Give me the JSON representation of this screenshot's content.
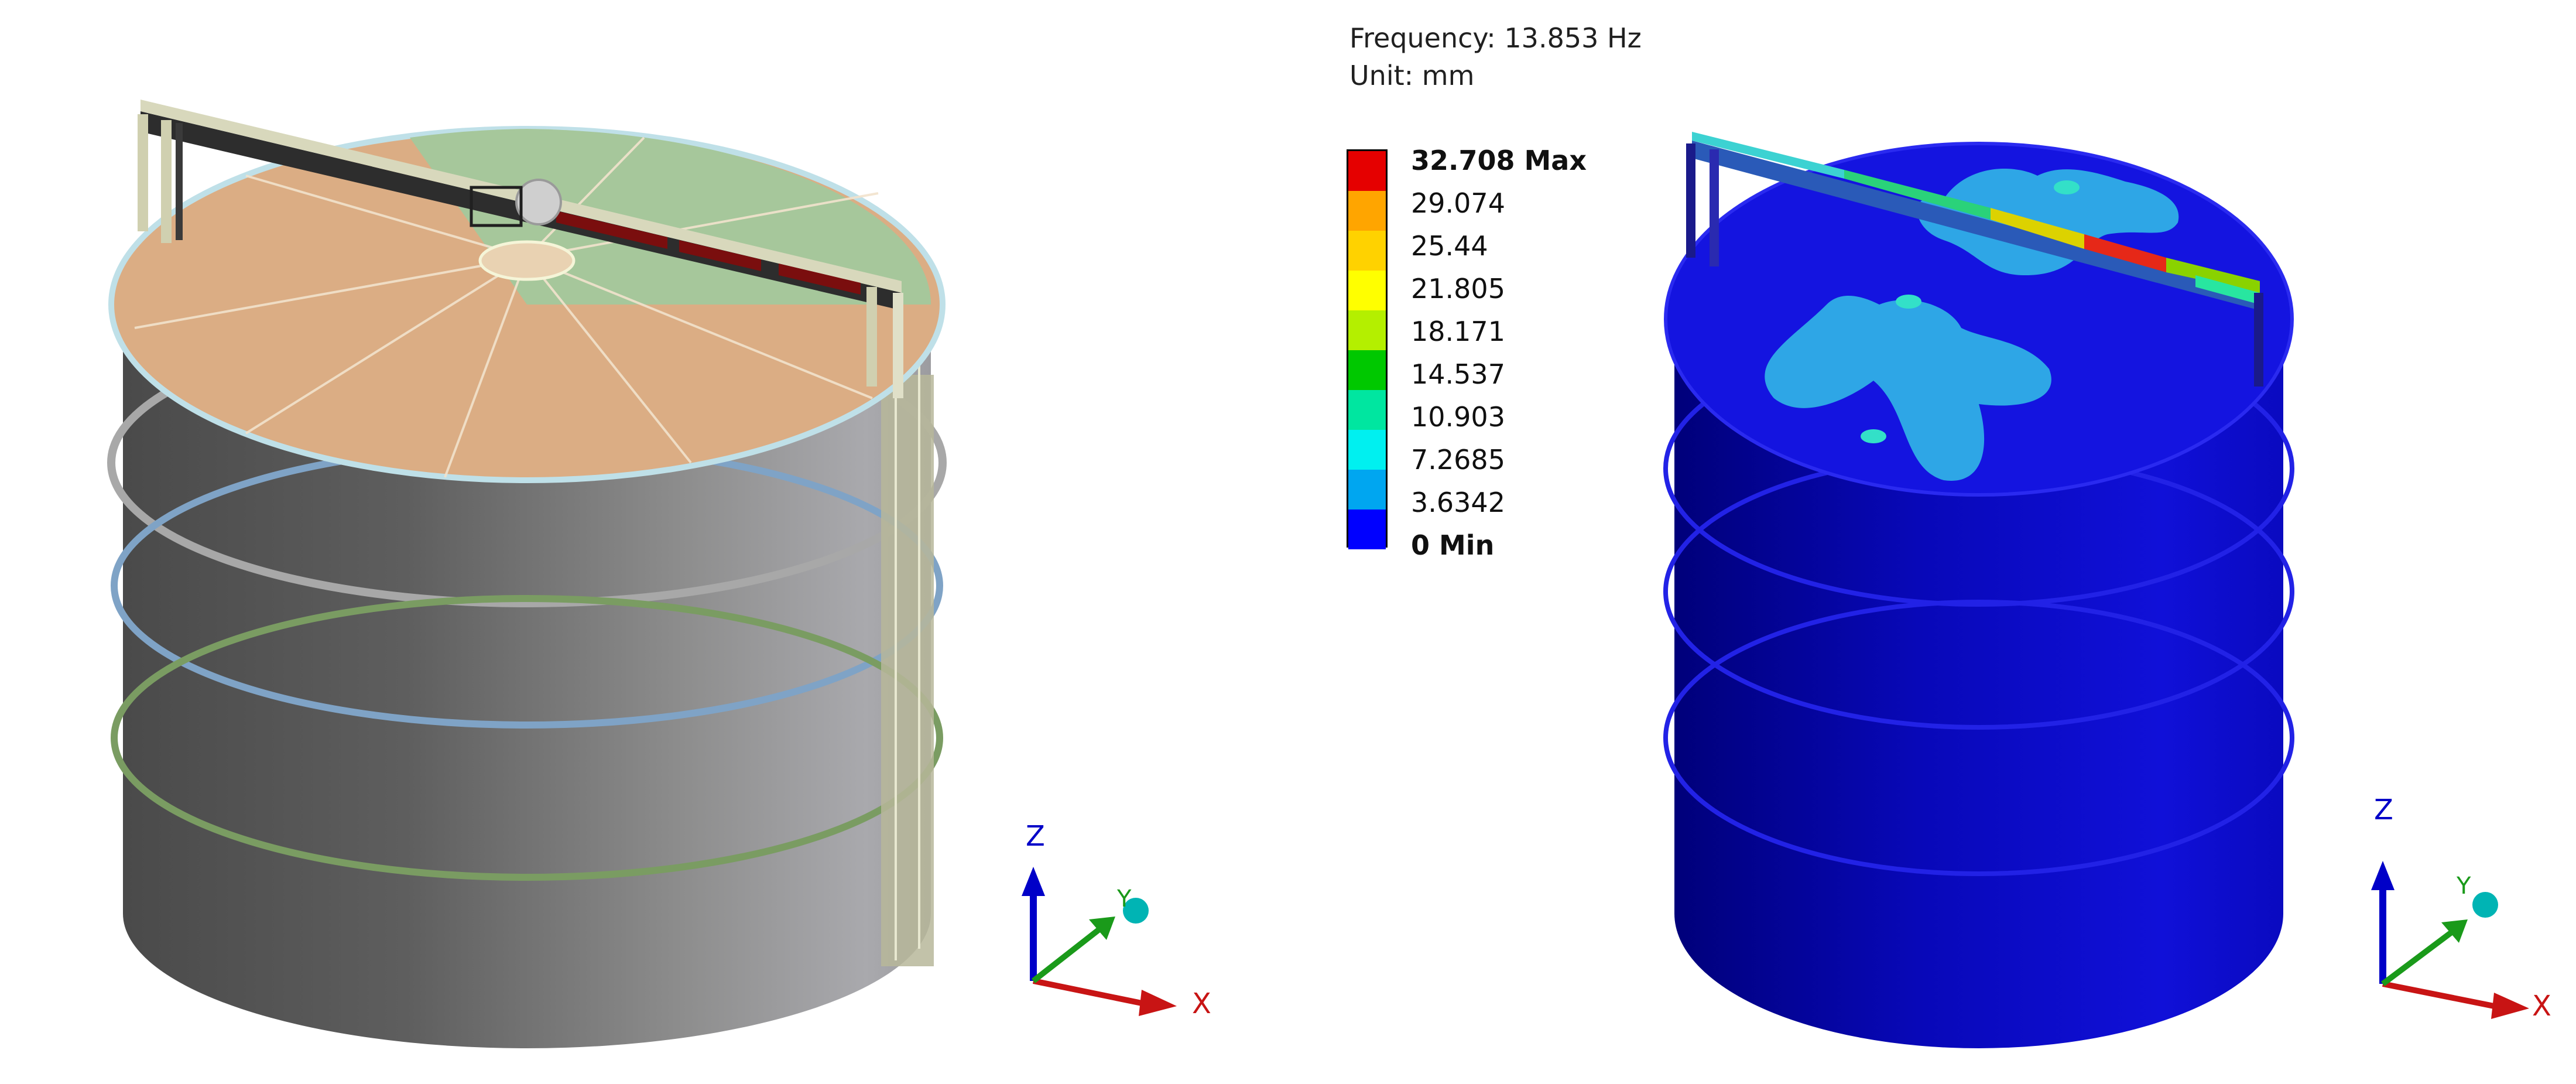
{
  "info": {
    "frequency": "Frequency: 13.853 Hz",
    "unit": "Unit: mm"
  },
  "legend": {
    "levels": [
      {
        "label": "32.708 Max",
        "color": "#e50000"
      },
      {
        "label": "29.074",
        "color": "#ffa500"
      },
      {
        "label": "25.44",
        "color": "#ffd200"
      },
      {
        "label": "21.805",
        "color": "#ffff00"
      },
      {
        "label": "18.171",
        "color": "#b4ef00"
      },
      {
        "label": "14.537",
        "color": "#00c800"
      },
      {
        "label": "10.903",
        "color": "#00e6a0"
      },
      {
        "label": "7.2685",
        "color": "#00f0f0"
      },
      {
        "label": "3.6342",
        "color": "#00a6f0"
      },
      {
        "label": "0 Min",
        "color": "#0000ff"
      }
    ]
  },
  "triad_left": {
    "z": "Z",
    "y": "Y",
    "x": "X"
  },
  "triad_right": {
    "z": "Z",
    "y": "Y",
    "x": "X"
  },
  "colors": {
    "shell_gray": "#8f8f8f",
    "roof_orange": "#dbad84",
    "roof_green": "#a6c79b",
    "contour_blue": "#1010d8",
    "bridge_red": "#7a0e0e"
  }
}
